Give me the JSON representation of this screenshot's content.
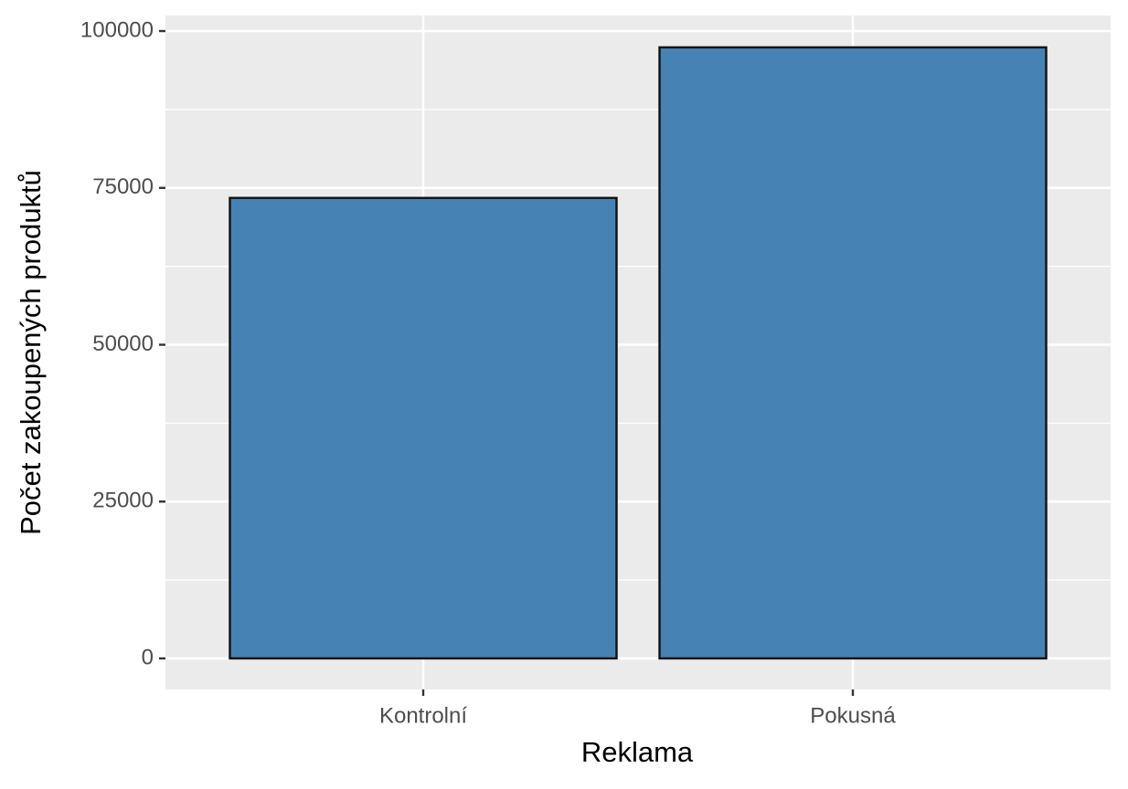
{
  "chart_data": {
    "type": "bar",
    "x_label": "Reklama",
    "y_label": "Počet zakoupených produktů",
    "categories": [
      "Kontrolní",
      "Pokusná"
    ],
    "values": [
      73400,
      97400
    ],
    "color": "#4682b4",
    "ylim": [
      -4949,
      102474
    ],
    "yticks": [
      0,
      25000,
      50000,
      75000,
      100000
    ],
    "grid": true
  }
}
